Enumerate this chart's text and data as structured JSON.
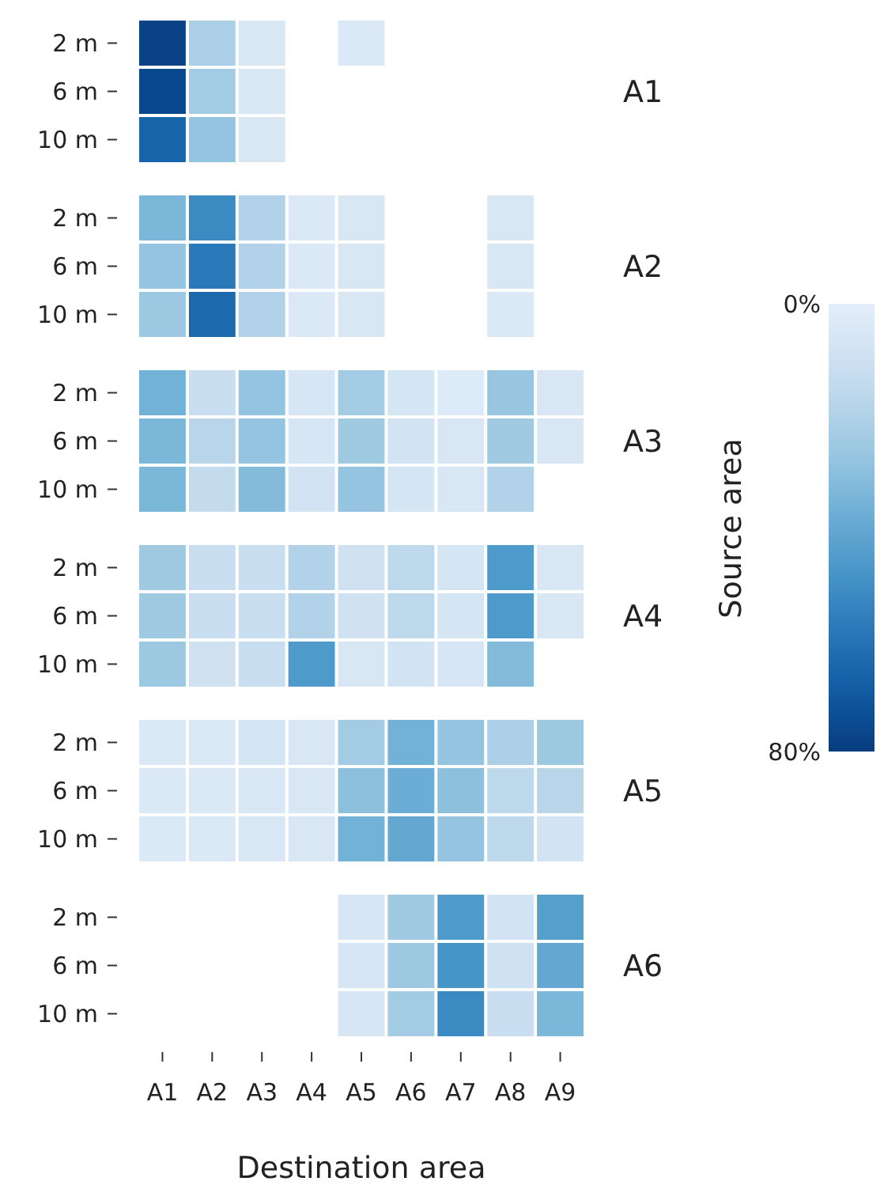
{
  "chart_data": {
    "type": "heatmap",
    "xlabel": "Destination area",
    "ylabel": "Source area",
    "categories": [
      "A1",
      "A2",
      "A3",
      "A4",
      "A5",
      "A6",
      "A7",
      "A8",
      "A9"
    ],
    "y_categories": [
      "2 m",
      "6 m",
      "10 m",
      "2 m",
      "6 m",
      "10 m",
      "2 m",
      "6 m",
      "10 m",
      "2 m",
      "6 m",
      "10 m",
      "2 m",
      "6 m",
      "10 m",
      "2 m",
      "6 m",
      "10 m"
    ],
    "y2_categories": [
      null,
      "A1",
      null,
      null,
      "A2",
      null,
      null,
      "A3",
      null,
      null,
      "A4",
      null,
      null,
      "A5",
      null,
      null,
      "A6",
      null
    ],
    "clim": [
      0,
      80
    ],
    "cticks": [
      {
        "value": 0,
        "label": "0%"
      },
      {
        "value": 80,
        "label": "80%"
      }
    ],
    "cells": [
      [
        78,
        22,
        5,
        null,
        4,
        null,
        null,
        null,
        null
      ],
      [
        76,
        24,
        5,
        null,
        null,
        null,
        null,
        null,
        null
      ],
      [
        66,
        28,
        5,
        null,
        null,
        null,
        null,
        null,
        null
      ],
      [
        34,
        52,
        20,
        4,
        5,
        null,
        null,
        5,
        null
      ],
      [
        28,
        58,
        20,
        4,
        5,
        null,
        null,
        5,
        null
      ],
      [
        26,
        64,
        20,
        4,
        5,
        null,
        null,
        4,
        null
      ],
      [
        36,
        12,
        28,
        6,
        24,
        7,
        3,
        27,
        5
      ],
      [
        34,
        18,
        28,
        6,
        25,
        8,
        5,
        25,
        5
      ],
      [
        34,
        14,
        32,
        8,
        28,
        7,
        5,
        20,
        null
      ],
      [
        25,
        12,
        12,
        20,
        9,
        16,
        7,
        46,
        5
      ],
      [
        25,
        12,
        12,
        20,
        9,
        16,
        7,
        46,
        5
      ],
      [
        26,
        9,
        12,
        46,
        5,
        8,
        6,
        32,
        null
      ],
      [
        4,
        4,
        7,
        5,
        24,
        36,
        28,
        22,
        26
      ],
      [
        4,
        4,
        5,
        5,
        30,
        38,
        30,
        16,
        18
      ],
      [
        4,
        4,
        5,
        5,
        36,
        40,
        28,
        16,
        8
      ],
      [
        null,
        null,
        null,
        null,
        6,
        25,
        46,
        8,
        44
      ],
      [
        null,
        null,
        null,
        null,
        6,
        26,
        48,
        9,
        40
      ],
      [
        null,
        null,
        null,
        null,
        6,
        24,
        52,
        12,
        34
      ]
    ]
  }
}
